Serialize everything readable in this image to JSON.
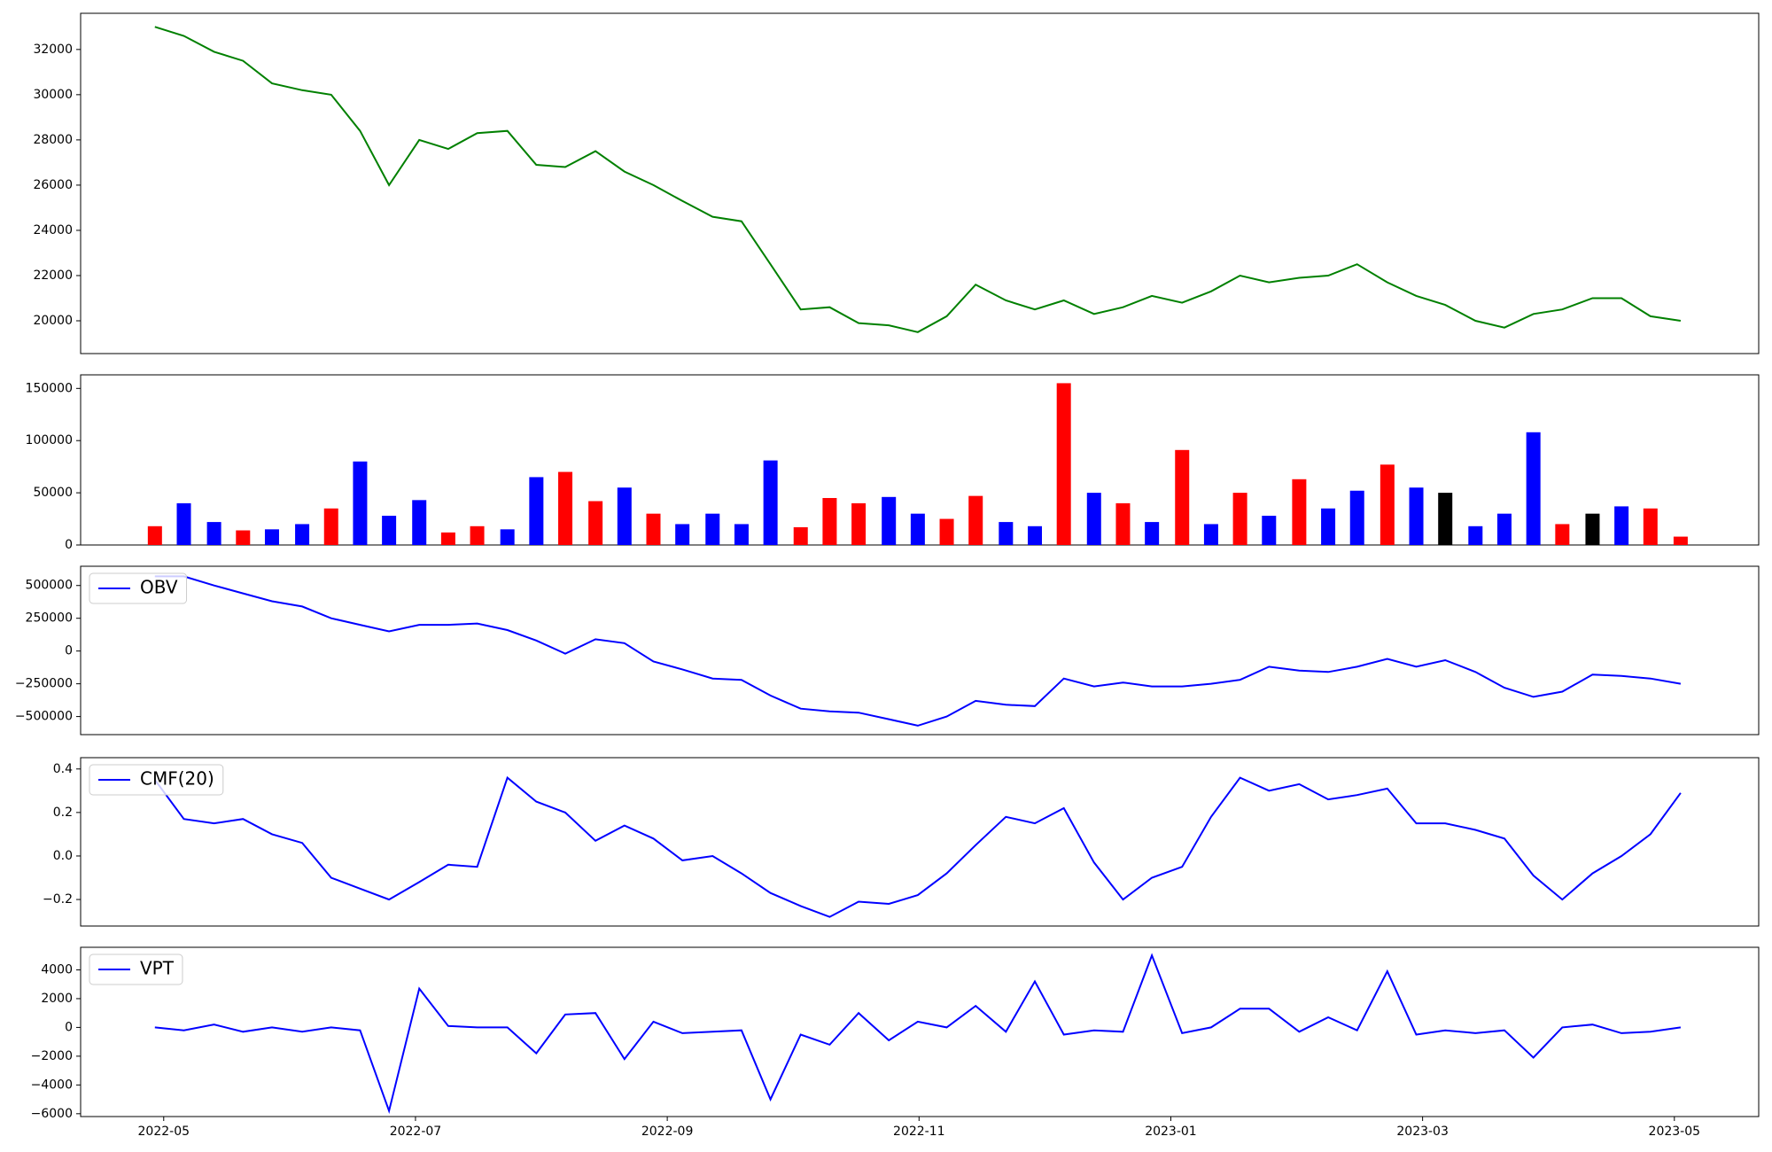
{
  "chart_data": [
    {
      "type": "line",
      "color": "green",
      "x": [
        -0.07,
        0.16,
        0.4,
        0.63,
        0.86,
        1.1,
        1.33,
        1.56,
        1.79,
        2.03,
        2.26,
        2.49,
        2.73,
        2.96,
        3.19,
        3.43,
        3.66,
        3.89,
        4.12,
        4.36,
        4.59,
        4.82,
        5.06,
        5.29,
        5.52,
        5.76,
        5.99,
        6.22,
        6.45,
        6.69,
        6.92,
        7.15,
        7.39,
        7.62,
        7.85,
        8.09,
        8.32,
        8.55,
        8.78,
        9.02,
        9.25,
        9.48,
        9.72,
        9.95,
        10.18,
        10.42,
        10.65,
        10.88,
        11.11,
        11.35,
        11.58,
        11.81,
        12.05
      ],
      "values": [
        33000,
        32600,
        31900,
        31500,
        30500,
        30200,
        30000,
        28400,
        26000,
        28000,
        27600,
        28300,
        28400,
        26900,
        26800,
        27500,
        26600,
        26000,
        25300,
        24600,
        24400,
        22500,
        20500,
        20600,
        19900,
        19800,
        19500,
        20200,
        21600,
        20900,
        20500,
        20900,
        20300,
        20600,
        21100,
        20800,
        21300,
        22000,
        21700,
        21900,
        22000,
        22500,
        21700,
        21100,
        20700,
        20000,
        19700,
        20300,
        20500,
        21000,
        21000,
        20200,
        20000
      ],
      "xlim": [
        -0.66,
        12.67
      ],
      "ylim": [
        18550,
        33600
      ],
      "yticks": [
        20000,
        22000,
        24000,
        26000,
        28000,
        30000,
        32000
      ]
    },
    {
      "type": "bar",
      "x": [
        -0.07,
        0.16,
        0.4,
        0.63,
        0.86,
        1.1,
        1.33,
        1.56,
        1.79,
        2.03,
        2.26,
        2.49,
        2.73,
        2.96,
        3.19,
        3.43,
        3.66,
        3.89,
        4.12,
        4.36,
        4.59,
        4.82,
        5.06,
        5.29,
        5.52,
        5.76,
        5.99,
        6.22,
        6.45,
        6.69,
        6.92,
        7.15,
        7.39,
        7.62,
        7.85,
        8.09,
        8.32,
        8.55,
        8.78,
        9.02,
        9.25,
        9.48,
        9.72,
        9.95,
        10.18,
        10.42,
        10.65,
        10.88,
        11.11,
        11.35,
        11.58,
        11.81,
        12.05
      ],
      "values": [
        18000,
        40000,
        22000,
        14000,
        15000,
        20000,
        35000,
        80000,
        28000,
        43000,
        12000,
        18000,
        15000,
        65000,
        70000,
        42000,
        55000,
        30000,
        20000,
        30000,
        20000,
        81000,
        17000,
        45000,
        40000,
        46000,
        30000,
        25000,
        47000,
        22000,
        18000,
        155000,
        50000,
        40000,
        22000,
        91000,
        20000,
        50000,
        28000,
        63000,
        35000,
        52000,
        77000,
        55000,
        50000,
        18000,
        30000,
        108000,
        20000,
        30000,
        37000,
        35000,
        8000
      ],
      "colors": [
        "red",
        "blue",
        "blue",
        "red",
        "blue",
        "blue",
        "red",
        "blue",
        "blue",
        "blue",
        "red",
        "red",
        "blue",
        "blue",
        "red",
        "red",
        "blue",
        "red",
        "blue",
        "blue",
        "blue",
        "blue",
        "red",
        "red",
        "red",
        "blue",
        "blue",
        "red",
        "red",
        "blue",
        "blue",
        "red",
        "blue",
        "red",
        "blue",
        "red",
        "blue",
        "red",
        "blue",
        "red",
        "blue",
        "blue",
        "red",
        "blue",
        "black",
        "blue",
        "blue",
        "blue",
        "red",
        "black",
        "blue",
        "red",
        "red"
      ],
      "xlim": [
        -0.66,
        12.67
      ],
      "ylim": [
        0,
        163000
      ],
      "yticks": [
        0,
        50000,
        100000,
        150000
      ]
    },
    {
      "type": "line",
      "legend": "upper left",
      "x": [
        -0.07,
        0.16,
        0.4,
        0.63,
        0.86,
        1.1,
        1.33,
        1.56,
        1.79,
        2.03,
        2.26,
        2.49,
        2.73,
        2.96,
        3.19,
        3.43,
        3.66,
        3.89,
        4.12,
        4.36,
        4.59,
        4.82,
        5.06,
        5.29,
        5.52,
        5.76,
        5.99,
        6.22,
        6.45,
        6.69,
        6.92,
        7.15,
        7.39,
        7.62,
        7.85,
        8.09,
        8.32,
        8.55,
        8.78,
        9.02,
        9.25,
        9.48,
        9.72,
        9.95,
        10.18,
        10.42,
        10.65,
        10.88,
        11.11,
        11.35,
        11.58,
        11.81,
        12.05
      ],
      "series": [
        {
          "name": "OBV",
          "color": "blue",
          "values": [
            570000,
            570000,
            500000,
            440000,
            380000,
            340000,
            250000,
            200000,
            150000,
            200000,
            200000,
            210000,
            160000,
            80000,
            -20000,
            90000,
            60000,
            -80000,
            -140000,
            -210000,
            -220000,
            -340000,
            -440000,
            -460000,
            -470000,
            -520000,
            -570000,
            -500000,
            -380000,
            -410000,
            -420000,
            -210000,
            -270000,
            -240000,
            -270000,
            -270000,
            -250000,
            -220000,
            -120000,
            -150000,
            -160000,
            -120000,
            -60000,
            -120000,
            -70000,
            -160000,
            -280000,
            -350000,
            -310000,
            -180000,
            -190000,
            -210000,
            -250000
          ]
        }
      ],
      "xlim": [
        -0.66,
        12.67
      ],
      "ylim": [
        -638000,
        647000
      ],
      "yticks": [
        {
          "value": -500000,
          "label": "−500000"
        },
        {
          "value": -250000,
          "label": "−250000"
        },
        0,
        250000,
        500000
      ]
    },
    {
      "type": "line",
      "legend": "upper left",
      "x": [
        -0.07,
        0.16,
        0.4,
        0.63,
        0.86,
        1.1,
        1.33,
        1.56,
        1.79,
        2.03,
        2.26,
        2.49,
        2.73,
        2.96,
        3.19,
        3.43,
        3.66,
        3.89,
        4.12,
        4.36,
        4.59,
        4.82,
        5.06,
        5.29,
        5.52,
        5.76,
        5.99,
        6.22,
        6.45,
        6.69,
        6.92,
        7.15,
        7.39,
        7.62,
        7.85,
        8.09,
        8.32,
        8.55,
        8.78,
        9.02,
        9.25,
        9.48,
        9.72,
        9.95,
        10.18,
        10.42,
        10.65,
        10.88,
        11.11,
        11.35,
        11.58,
        11.81,
        12.05
      ],
      "series": [
        {
          "name": "CMF(20)",
          "color": "blue",
          "values": [
            0.35,
            0.17,
            0.15,
            0.17,
            0.1,
            0.06,
            -0.1,
            -0.15,
            -0.2,
            -0.12,
            -0.04,
            -0.05,
            0.36,
            0.25,
            0.2,
            0.07,
            0.14,
            0.08,
            -0.02,
            0,
            -0.08,
            -0.17,
            -0.23,
            -0.28,
            -0.21,
            -0.22,
            -0.18,
            -0.08,
            0.05,
            0.18,
            0.15,
            0.22,
            -0.03,
            -0.2,
            -0.1,
            -0.05,
            0.18,
            0.36,
            0.3,
            0.33,
            0.26,
            0.28,
            0.31,
            0.15,
            0.15,
            0.12,
            0.08,
            -0.09,
            -0.2,
            -0.08,
            0,
            0.1,
            0.29
          ]
        }
      ],
      "xlim": [
        -0.66,
        12.67
      ],
      "ylim": [
        -0.322,
        0.452
      ],
      "yticks": [
        {
          "value": -0.2,
          "label": "−0.2"
        },
        {
          "value": 0,
          "label": "0.0"
        },
        0.2,
        0.4
      ]
    },
    {
      "type": "line",
      "legend": "upper left",
      "x": [
        -0.07,
        0.16,
        0.4,
        0.63,
        0.86,
        1.1,
        1.33,
        1.56,
        1.79,
        2.03,
        2.26,
        2.49,
        2.73,
        2.96,
        3.19,
        3.43,
        3.66,
        3.89,
        4.12,
        4.36,
        4.59,
        4.82,
        5.06,
        5.29,
        5.52,
        5.76,
        5.99,
        6.22,
        6.45,
        6.69,
        6.92,
        7.15,
        7.39,
        7.62,
        7.85,
        8.09,
        8.32,
        8.55,
        8.78,
        9.02,
        9.25,
        9.48,
        9.72,
        9.95,
        10.18,
        10.42,
        10.65,
        10.88,
        11.11,
        11.35,
        11.58,
        11.81,
        12.05
      ],
      "series": [
        {
          "name": "VPT",
          "color": "blue",
          "values": [
            0,
            -200,
            200,
            -300,
            0,
            -300,
            0,
            -200,
            -5800,
            2700,
            100,
            0,
            0,
            -1800,
            900,
            1000,
            -2200,
            400,
            -400,
            -300,
            -200,
            -5000,
            -500,
            -1200,
            1000,
            -900,
            400,
            0,
            1500,
            -300,
            3200,
            -500,
            -200,
            -300,
            5000,
            -400,
            0,
            1300,
            1300,
            -300,
            700,
            -200,
            3900,
            -500,
            -200,
            -400,
            -200,
            -2100,
            0,
            200,
            -400,
            -300,
            0
          ]
        }
      ],
      "xlim": [
        -0.66,
        12.67
      ],
      "ylim": [
        -6196,
        5569
      ],
      "yticks": [
        {
          "value": -6000,
          "label": "−6000"
        },
        {
          "value": -4000,
          "label": "−4000"
        },
        {
          "value": -2000,
          "label": "−2000"
        },
        0,
        2000,
        4000
      ],
      "xticks": [
        {
          "value": 0,
          "label": "2022-05"
        },
        {
          "value": 2,
          "label": "2022-07"
        },
        {
          "value": 4,
          "label": "2022-09"
        },
        {
          "value": 6,
          "label": "2022-11"
        },
        {
          "value": 8,
          "label": "2023-01"
        },
        {
          "value": 10,
          "label": "2023-03"
        },
        {
          "value": 12,
          "label": "2023-05"
        }
      ]
    }
  ]
}
